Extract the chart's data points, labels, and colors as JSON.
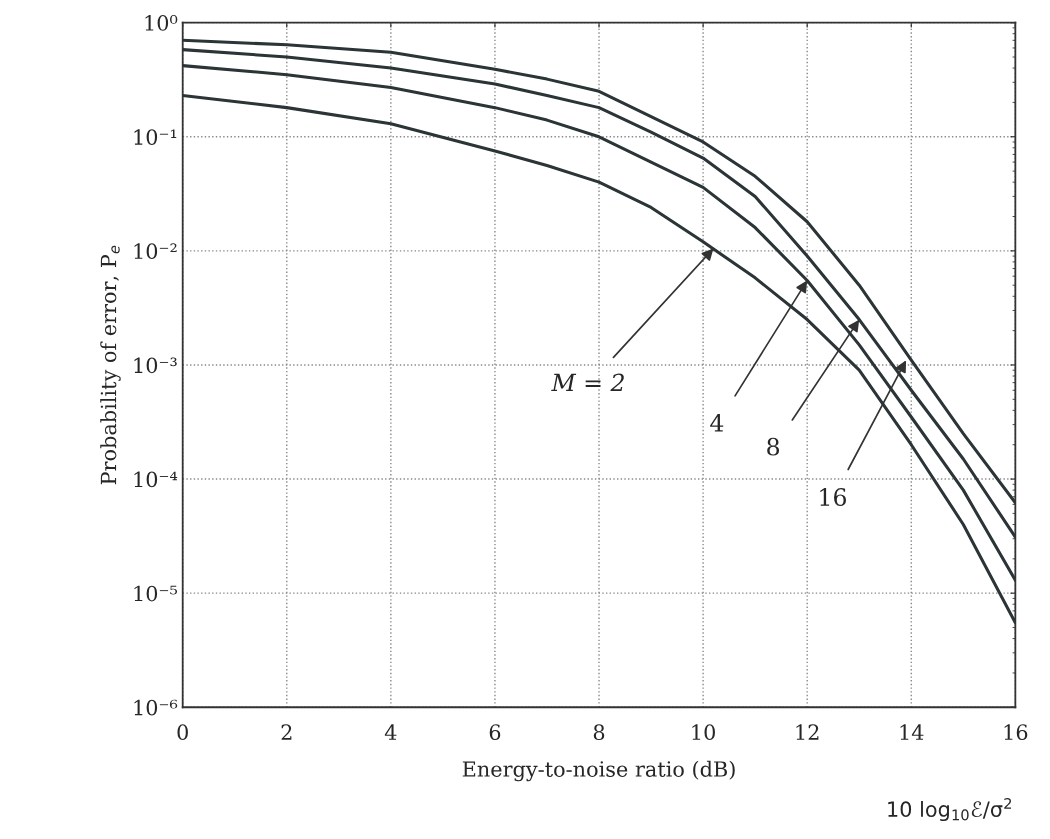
{
  "chart_data": {
    "type": "line",
    "xlabel": "Energy-to-noise ratio (dB)",
    "ylabel": "Probability of error, P$_{e}$",
    "x": [
      0,
      2,
      4,
      6,
      7,
      8,
      9,
      10,
      11,
      12,
      13,
      14,
      15,
      16
    ],
    "series": [
      {
        "color": "#2b3436",
        "values": [
          0.23,
          0.18,
          0.13,
          0.075,
          0.056,
          0.04,
          0.024,
          0.012,
          0.0058,
          0.0025,
          0.0009,
          0.0002,
          4e-05,
          5.5e-06
        ]
      },
      {
        "color": "#2b3436",
        "values": [
          0.42,
          0.35,
          0.27,
          0.18,
          0.14,
          0.1,
          0.06,
          0.036,
          0.016,
          0.0055,
          0.0015,
          0.00035,
          8e-05,
          1.3e-05
        ]
      },
      {
        "color": "#2b3436",
        "values": [
          0.58,
          0.5,
          0.4,
          0.29,
          0.23,
          0.18,
          0.11,
          0.065,
          0.03,
          0.009,
          0.0025,
          0.0006,
          0.00015,
          3.1e-05
        ]
      },
      {
        "color": "#2b3436",
        "values": [
          0.7,
          0.64,
          0.55,
          0.39,
          0.32,
          0.25,
          0.15,
          0.09,
          0.045,
          0.018,
          0.005,
          0.0011,
          0.00025,
          6.2e-05
        ]
      }
    ],
    "log": "y",
    "xlim": [
      0,
      16
    ],
    "ylim": [
      1e-06,
      1
    ],
    "xticks": [
      0,
      2,
      4,
      6,
      8,
      10,
      12,
      14,
      16
    ],
    "yticks": [
      {
        "value": 1e-06,
        "label": "10⁻⁶"
      },
      {
        "value": 1e-05,
        "label": "10⁻⁵"
      },
      {
        "value": 0.0001,
        "label": "10⁻⁴"
      },
      {
        "value": 0.001,
        "label": "10⁻³"
      },
      {
        "value": 0.01,
        "label": "10⁻²"
      },
      {
        "value": 0.1,
        "label": "10⁻¹"
      },
      {
        "value": 1,
        "label": "10⁰"
      }
    ],
    "grid": true,
    "line_style": "solid",
    "marker": "none",
    "annotations": [
      {
        "text": "M = 2",
        "x": 10.2,
        "y": 0.0105
      },
      {
        "text": "4",
        "x": 12.0,
        "y": 0.0055
      },
      {
        "text": "8",
        "x": 13.0,
        "y": 0.0025
      },
      {
        "text": "16",
        "x": 13.9,
        "y": 0.0011
      },
      "10 log$_{10}$ℰ/σ$^{2}$"
    ]
  }
}
